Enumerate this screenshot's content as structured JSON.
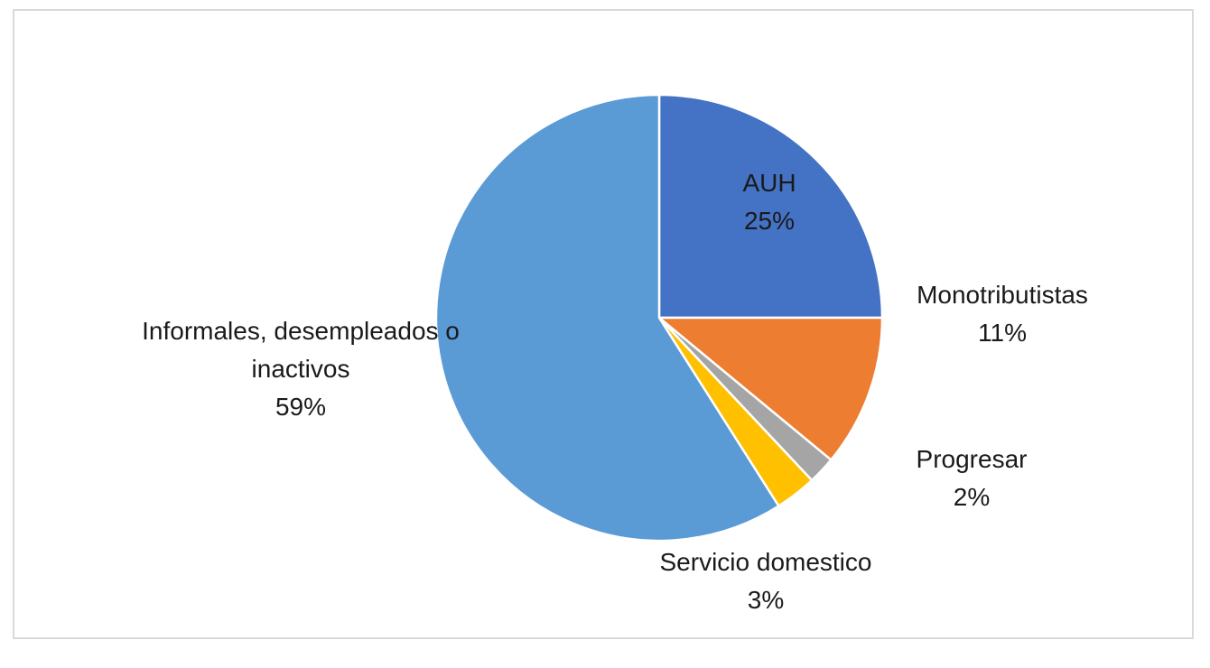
{
  "chart_data": {
    "type": "pie",
    "title": "",
    "start_angle_deg": 0,
    "direction": "clockwise",
    "slices": [
      {
        "label_lines": [
          "AUH"
        ],
        "value": 25,
        "value_label": "25%",
        "color": "#4472C4"
      },
      {
        "label_lines": [
          "Monotributistas"
        ],
        "value": 11,
        "value_label": "11%",
        "color": "#ED7D31"
      },
      {
        "label_lines": [
          "Progresar"
        ],
        "value": 2,
        "value_label": "2%",
        "color": "#A5A5A5"
      },
      {
        "label_lines": [
          "Servicio domestico"
        ],
        "value": 3,
        "value_label": "3%",
        "color": "#FFC000"
      },
      {
        "label_lines": [
          "Informales, desempleados o",
          "inactivos"
        ],
        "value": 59,
        "value_label": "59%",
        "color": "#5B9BD5"
      }
    ],
    "legend": "none"
  }
}
